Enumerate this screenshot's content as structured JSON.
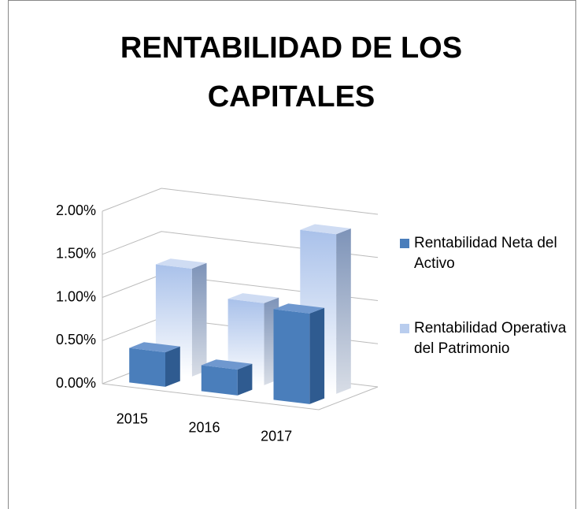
{
  "chart_data": {
    "type": "bar3d",
    "title": "RENTABILIDAD DE LOS CAPITALES",
    "categories": [
      "2015",
      "2016",
      "2017"
    ],
    "series": [
      {
        "name": "Rentabilidad Neta del Activo",
        "color": "#4a7ebb",
        "values": [
          0.4,
          0.3,
          1.05
        ]
      },
      {
        "name": "Rentabilidad Operativa del Patrimonio",
        "color": "#b9cdee",
        "values": [
          1.25,
          0.95,
          1.85
        ]
      }
    ],
    "ylim": [
      0,
      2
    ],
    "yticks": [
      {
        "value": 0,
        "label": "0.00%"
      },
      {
        "value": 0.5,
        "label": "0.50%"
      },
      {
        "value": 1,
        "label": "1.00%"
      },
      {
        "value": 1.5,
        "label": "1.50%"
      },
      {
        "value": 2,
        "label": "2.00%"
      }
    ],
    "grid": true,
    "legend": "right"
  }
}
